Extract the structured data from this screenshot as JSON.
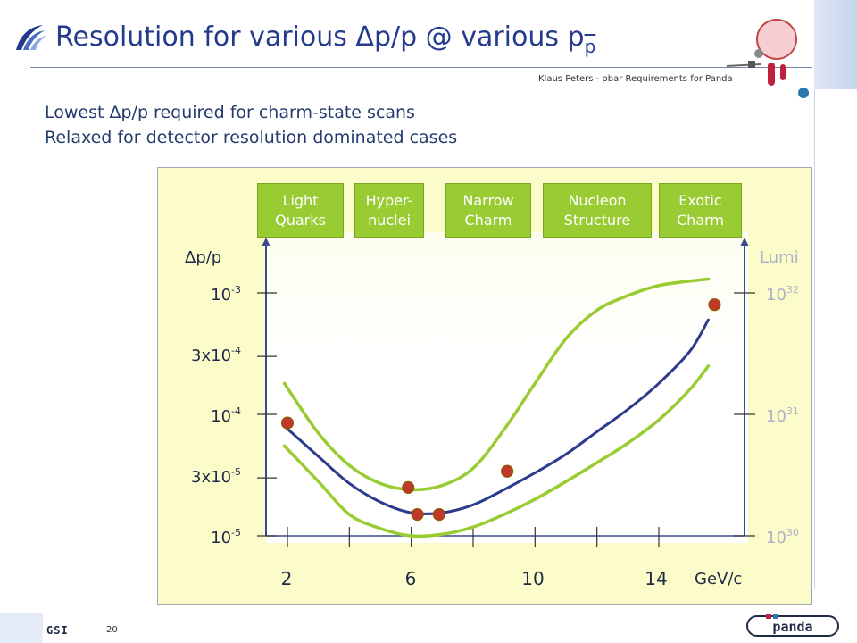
{
  "slide": {
    "title_main": "Resolution for various Δp/p @ various p",
    "title_pbar": "p",
    "author": "Klaus Peters - pbar Requirements for Panda",
    "bullets": [
      "Lowest Δp/p required for charm-state scans",
      "Relaxed for detector resolution dominated cases"
    ],
    "page_number": "20",
    "footer_logo_left": "GSI",
    "footer_logo_right": "panda"
  },
  "colors": {
    "title": "#243a8c",
    "panel": "#fcfccb",
    "region": "#99cc33",
    "curve_main": "#2e3a8c",
    "curve_band": "#99cc33",
    "point": "#c0392b",
    "lumi_text": "#aab3c8"
  },
  "chart_data": {
    "type": "line",
    "regions": [
      {
        "line1": "Light",
        "line2": "Quarks"
      },
      {
        "line1": "Hyper-",
        "line2": "nuclei"
      },
      {
        "line1": "Narrow",
        "line2": "Charm"
      },
      {
        "line1": "Nucleon",
        "line2": "Structure"
      },
      {
        "line1": "Exotic",
        "line2": "Charm"
      }
    ],
    "ylabel": "Δp/p",
    "ylabel_right": "Lumi",
    "xlabel": "GeV/c",
    "y_ticks": [
      {
        "base": "10",
        "exp": "-3",
        "value": 0.001
      },
      {
        "base": "3x10",
        "exp": "-4",
        "value": 0.0003
      },
      {
        "base": "10",
        "exp": "-4",
        "value": 0.0001
      },
      {
        "base": "3x10",
        "exp": "-5",
        "value": 3e-05
      },
      {
        "base": "10",
        "exp": "-5",
        "value": 1e-05
      }
    ],
    "lumi_ticks": [
      {
        "base": "10",
        "exp": "32",
        "value": 1e+32
      },
      {
        "base": "10",
        "exp": "31",
        "value": 1e+31
      },
      {
        "base": "10",
        "exp": "30",
        "value": 1e+30
      }
    ],
    "x_ticks": [
      2,
      6,
      10,
      14
    ],
    "x_minor_ticks": [
      2,
      4,
      6,
      8,
      10,
      12,
      14
    ],
    "xlim": [
      1,
      16
    ],
    "y_scale": "log",
    "ylim": [
      1e-05,
      0.0015
    ],
    "series": [
      {
        "role": "resolution",
        "x": [
          1.9,
          3,
          4,
          5,
          6,
          7,
          8,
          9,
          10,
          11,
          12,
          13,
          14,
          15,
          15.6
        ],
        "y": [
          8e-05,
          4.5e-05,
          2.7e-05,
          1.9e-05,
          1.55e-05,
          1.55e-05,
          1.8e-05,
          2.4e-05,
          3.3e-05,
          4.7e-05,
          7.2e-05,
          0.00011,
          0.00018,
          0.00033,
          0.0006
        ]
      },
      {
        "role": "band-upper",
        "x": [
          1.9,
          3,
          4,
          5,
          6,
          7,
          8,
          9,
          10,
          11,
          12,
          13,
          14,
          15,
          15.6
        ],
        "y": [
          0.00018,
          7e-05,
          3.8e-05,
          2.7e-05,
          2.4e-05,
          2.6e-05,
          3.6e-05,
          7.5e-05,
          0.00018,
          0.00042,
          0.00072,
          0.00095,
          0.00115,
          0.00125,
          0.0013
        ]
      },
      {
        "role": "band-lower",
        "x": [
          1.9,
          3,
          4,
          5,
          6,
          7,
          8,
          9,
          10,
          11,
          12,
          13,
          14,
          15,
          15.6
        ],
        "y": [
          5.5e-05,
          2.8e-05,
          1.5e-05,
          1.15e-05,
          1e-05,
          1.03e-05,
          1.18e-05,
          1.5e-05,
          2e-05,
          2.8e-05,
          4e-05,
          5.8e-05,
          9e-05,
          0.00016,
          0.00025
        ]
      }
    ],
    "points": {
      "x": [
        2,
        5.9,
        6.2,
        6.9,
        9.1,
        15.8
      ],
      "y": [
        8.5e-05,
        2.5e-05,
        1.5e-05,
        1.5e-05,
        3.4e-05,
        0.0008
      ]
    }
  }
}
